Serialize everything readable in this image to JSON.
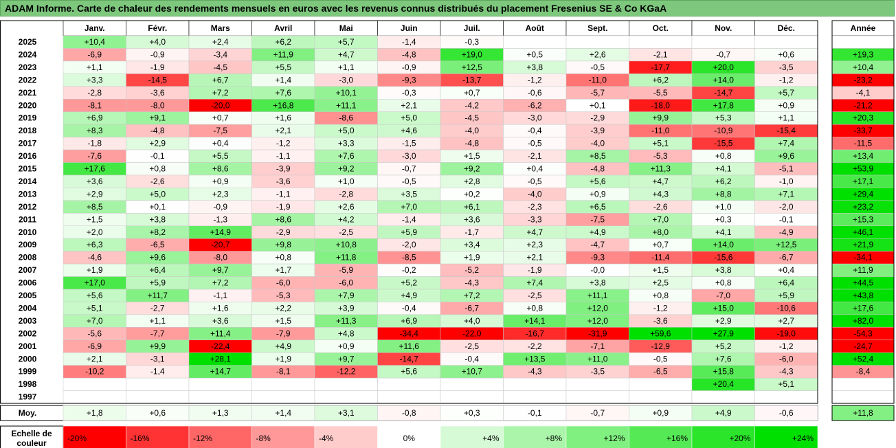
{
  "title": "ADAM Informe. Carte de chaleur des rendements mensuels en euros avec les revenus connus distribués du placement Fresenius SE & Co KGaA",
  "chart_data": {
    "type": "heatmap",
    "months": [
      "Janv.",
      "Févr.",
      "Mars",
      "Avril",
      "Mai",
      "Juin",
      "Juil.",
      "Août",
      "Sept.",
      "Oct.",
      "Nov.",
      "Déc."
    ],
    "annee_label": "Année",
    "years": [
      "2025",
      "2024",
      "2023",
      "2022",
      "2021",
      "2020",
      "2019",
      "2018",
      "2017",
      "2016",
      "2015",
      "2014",
      "2013",
      "2012",
      "2011",
      "2010",
      "2009",
      "2008",
      "2007",
      "2006",
      "2005",
      "2004",
      "2003",
      "2002",
      "2001",
      "2000",
      "1999",
      "1998",
      "1997"
    ],
    "values": [
      [
        "+10,4",
        "+4,0",
        "+2,4",
        "+6,2",
        "+5,7",
        "-1,4",
        "-0,3",
        "",
        "",
        "",
        "",
        ""
      ],
      [
        "-6,9",
        "-0,9",
        "-3,4",
        "+11,9",
        "+4,7",
        "-4,8",
        "+19,0",
        "+0,5",
        "+2,6",
        "-2,1",
        "-0,7",
        "+0,6"
      ],
      [
        "+1,1",
        "-1,9",
        "-4,5",
        "+5,5",
        "+1,1",
        "-0,9",
        "+12,5",
        "+3,8",
        "-0,5",
        "-17,7",
        "+20,0",
        "-3,5"
      ],
      [
        "+3,3",
        "-14,5",
        "+6,7",
        "+1,4",
        "-3,0",
        "-9,3",
        "-13,7",
        "-1,2",
        "-11,0",
        "+6,2",
        "+14,0",
        "-1,2"
      ],
      [
        "-2,8",
        "-3,6",
        "+7,2",
        "+7,6",
        "+10,1",
        "-0,3",
        "+0,7",
        "-0,6",
        "-5,7",
        "-5,5",
        "-14,7",
        "+5,7"
      ],
      [
        "-8,1",
        "-8,0",
        "-20,0",
        "+16,8",
        "+11,1",
        "+2,1",
        "-4,2",
        "-6,2",
        "+0,1",
        "-18,0",
        "+17,8",
        "+0,9"
      ],
      [
        "+6,9",
        "+9,1",
        "+0,7",
        "+1,6",
        "-8,6",
        "+5,0",
        "-4,5",
        "-3,0",
        "-2,9",
        "+9,9",
        "+5,3",
        "+1,1"
      ],
      [
        "+8,3",
        "-4,8",
        "-7,5",
        "+2,1",
        "+5,0",
        "+4,6",
        "-4,0",
        "-0,4",
        "-3,9",
        "-11,0",
        "-10,9",
        "-15,4"
      ],
      [
        "-1,8",
        "+2,9",
        "+0,4",
        "-1,2",
        "+3,3",
        "-1,5",
        "-4,8",
        "-0,5",
        "-4,0",
        "+5,1",
        "-15,5",
        "+7,4"
      ],
      [
        "-7,6",
        "-0,1",
        "+5,5",
        "-1,1",
        "+7,6",
        "-3,0",
        "+1,5",
        "-2,1",
        "+8,5",
        "-5,3",
        "+0,8",
        "+9,6"
      ],
      [
        "+17,6",
        "+0,8",
        "+8,6",
        "-3,9",
        "+9,2",
        "-0,7",
        "+9,2",
        "+0,4",
        "-4,8",
        "+11,3",
        "+4,1",
        "-5,1"
      ],
      [
        "+3,6",
        "-2,6",
        "+0,9",
        "-3,6",
        "+1,0",
        "-0,5",
        "+2,8",
        "-0,5",
        "+5,6",
        "+4,7",
        "+6,2",
        "-1,0"
      ],
      [
        "+2,9",
        "+5,0",
        "+2,3",
        "-1,1",
        "-2,8",
        "+3,5",
        "+0,2",
        "-4,0",
        "+0,9",
        "+4,3",
        "+8,8",
        "+7,1"
      ],
      [
        "+8,5",
        "+0,1",
        "-0,9",
        "-1,9",
        "+2,6",
        "+7,0",
        "+6,1",
        "-2,3",
        "+6,5",
        "-2,6",
        "+1,0",
        "-2,0"
      ],
      [
        "+1,5",
        "+3,8",
        "-1,3",
        "+8,6",
        "+4,2",
        "-1,4",
        "+3,6",
        "-3,3",
        "-7,5",
        "+7,0",
        "+0,3",
        "-0,1"
      ],
      [
        "+2,0",
        "+8,2",
        "+14,9",
        "-2,9",
        "-2,5",
        "+5,9",
        "-1,7",
        "+4,7",
        "+4,9",
        "+8,0",
        "+4,1",
        "-4,9"
      ],
      [
        "+6,3",
        "-6,5",
        "-20,7",
        "+9,8",
        "+10,8",
        "-2,0",
        "+3,4",
        "+2,3",
        "-4,7",
        "+0,7",
        "+14,0",
        "+12,5"
      ],
      [
        "-4,6",
        "+9,6",
        "-8,0",
        "+0,8",
        "+11,8",
        "-8,5",
        "+1,9",
        "+2,1",
        "-9,3",
        "-11,4",
        "-15,6",
        "-6,7"
      ],
      [
        "+1,9",
        "+6,4",
        "+9,7",
        "+1,7",
        "-5,9",
        "-0,2",
        "-5,2",
        "-1,9",
        "-0,0",
        "+1,5",
        "+3,8",
        "+0,4"
      ],
      [
        "+17,0",
        "+5,9",
        "+7,2",
        "-6,0",
        "-6,0",
        "+5,2",
        "-4,3",
        "+7,4",
        "+3,8",
        "+2,5",
        "+0,8",
        "+6,4"
      ],
      [
        "+5,6",
        "+11,7",
        "-1,1",
        "-5,3",
        "+7,9",
        "+4,9",
        "+7,2",
        "-2,5",
        "+11,1",
        "+0,8",
        "-7,0",
        "+5,9"
      ],
      [
        "+5,1",
        "-2,7",
        "+1,6",
        "+2,2",
        "+3,9",
        "-0,4",
        "-6,7",
        "+0,8",
        "+12,0",
        "-1,2",
        "+15,0",
        "-10,6"
      ],
      [
        "+7,0",
        "+1,1",
        "+3,6",
        "+1,5",
        "+11,3",
        "+6,9",
        "+4,0",
        "+14,1",
        "+12,0",
        "-3,6",
        "+2,9",
        "+2,7"
      ],
      [
        "-5,6",
        "-7,7",
        "+11,4",
        "-7,9",
        "+4,8",
        "-34,4",
        "-22,0",
        "-16,7",
        "-31,9",
        "+59,6",
        "+27,9",
        "-19,0"
      ],
      [
        "-6,9",
        "+9,9",
        "-22,4",
        "+4,9",
        "+0,9",
        "+11,6",
        "-2,5",
        "-2,2",
        "-7,1",
        "-12,9",
        "+5,2",
        "-1,2"
      ],
      [
        "+2,1",
        "-3,1",
        "+28,1",
        "+1,9",
        "+9,7",
        "-14,7",
        "-0,4",
        "+13,5",
        "+11,0",
        "-0,5",
        "+7,6",
        "-6,0"
      ],
      [
        "-10,2",
        "-1,4",
        "+14,7",
        "-8,1",
        "-12,2",
        "+5,6",
        "+10,7",
        "-4,3",
        "-3,5",
        "-6,5",
        "+15,8",
        "-4,3"
      ],
      [
        "",
        "",
        "",
        "",
        "",
        "",
        "",
        "",
        "",
        "",
        "+20,4",
        "+5,1"
      ],
      [
        "",
        "",
        "",
        "",
        "",
        "",
        "",
        "",
        "",
        "",
        "",
        ""
      ]
    ],
    "annual": [
      "",
      "+19,3",
      "+10,4",
      "-23,2",
      "-4,1",
      "-21,2",
      "+20,3",
      "-33,7",
      "-11,5",
      "+13,4",
      "+53,9",
      "+17,1",
      "+29,4",
      "+23,2",
      "+15,3",
      "+46,1",
      "+21,9",
      "-34,1",
      "+11,9",
      "+44,5",
      "+43,8",
      "+17,6",
      "+82,0",
      "-54,3",
      "-24,7",
      "+52,4",
      "-8,4",
      "",
      ""
    ],
    "avg_label": "Moy.",
    "averages": [
      "+1,8",
      "+0,6",
      "+1,3",
      "+1,4",
      "+3,1",
      "-0,8",
      "+0,3",
      "-0,1",
      "-0,7",
      "+0,9",
      "+4,9",
      "-0,6"
    ],
    "avg_annual": "+11,8",
    "scale_label_line1": "Echelle de",
    "scale_label_line2": "couleur",
    "scale_labels": [
      "-20%",
      "-16%",
      "-12%",
      "-8%",
      "-4%",
      "0%",
      "+4%",
      "+8%",
      "+12%",
      "+16%",
      "+20%",
      "+24%"
    ],
    "scale_values": [
      -20,
      -16,
      -12,
      -8,
      -4,
      0,
      4,
      8,
      12,
      16,
      20,
      24
    ],
    "colors": {
      "negative": "#ff0000",
      "positive": "#00e000",
      "neutral": "#ffffff",
      "title_bg": "#7ec87e"
    }
  }
}
